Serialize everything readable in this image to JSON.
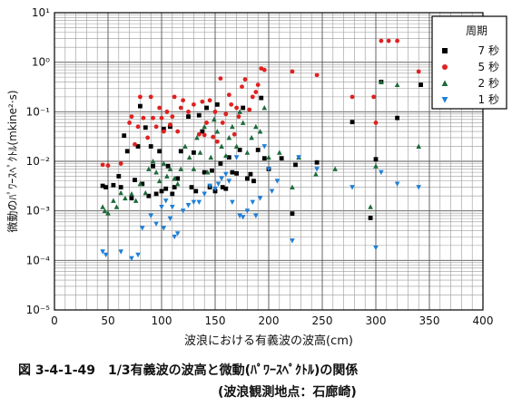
{
  "figure": {
    "caption_line1": "図 3-4-1-49　1/3有義波の波高と微動(ﾊﾟﾜｰｽﾍﾟｸﾄﾙ)の関係",
    "caption_line2": "(波浪観測地点：石廊崎)"
  },
  "chart_data": {
    "type": "scatter",
    "title": "",
    "xlabel": "波浪における有義波の波高(cm)",
    "ylabel": "微動のﾊﾟﾜｰｽﾍﾟｸﾄﾙ(mkine²·s)",
    "xlim": [
      0,
      400
    ],
    "ylim": [
      1e-05,
      10
    ],
    "y_scale": "log",
    "x_ticks": [
      0,
      50,
      100,
      150,
      200,
      250,
      300,
      350,
      400
    ],
    "y_tick_labels": [
      "10⁻⁵",
      "10⁻⁴",
      "10⁻³",
      "10⁻²",
      "10⁻¹",
      "10⁰",
      "10¹"
    ],
    "grid": true,
    "legend": {
      "title": "周期",
      "placement": "top-right"
    },
    "series": [
      {
        "name": "7 秒",
        "marker": "square",
        "color": "#000000",
        "points": [
          [
            45,
            0.0032
          ],
          [
            48,
            0.003
          ],
          [
            55,
            0.0033
          ],
          [
            60,
            0.005
          ],
          [
            62,
            0.003
          ],
          [
            65,
            0.033
          ],
          [
            68,
            0.016
          ],
          [
            72,
            0.0018
          ],
          [
            75,
            0.0042
          ],
          [
            78,
            0.02
          ],
          [
            80,
            0.13
          ],
          [
            82,
            0.0035
          ],
          [
            85,
            0.048
          ],
          [
            88,
            0.002
          ],
          [
            90,
            0.02
          ],
          [
            92,
            0.008
          ],
          [
            95,
            0.0022
          ],
          [
            98,
            0.016
          ],
          [
            100,
            0.0025
          ],
          [
            102,
            0.045
          ],
          [
            104,
            0.0028
          ],
          [
            106,
            0.008
          ],
          [
            108,
            0.05
          ],
          [
            110,
            0.0022
          ],
          [
            112,
            0.003
          ],
          [
            115,
            0.0045
          ],
          [
            118,
            0.016
          ],
          [
            125,
            0.08
          ],
          [
            128,
            0.003
          ],
          [
            130,
            0.015
          ],
          [
            132,
            0.0025
          ],
          [
            135,
            0.085
          ],
          [
            138,
            0.04
          ],
          [
            140,
            0.006
          ],
          [
            142,
            0.12
          ],
          [
            145,
            0.003
          ],
          [
            147,
            0.0065
          ],
          [
            150,
            0.0025
          ],
          [
            152,
            0.14
          ],
          [
            155,
            0.009
          ],
          [
            157,
            0.003
          ],
          [
            160,
            0.0028
          ],
          [
            163,
            0.012
          ],
          [
            166,
            0.006
          ],
          [
            170,
            0.0057
          ],
          [
            173,
            0.017
          ],
          [
            176,
            0.12
          ],
          [
            180,
            0.0045
          ],
          [
            183,
            0.0055
          ],
          [
            186,
            0.004
          ],
          [
            190,
            0.017
          ],
          [
            193,
            0.19
          ],
          [
            196,
            0.0115
          ],
          [
            200,
            0.007
          ],
          [
            212,
            0.0115
          ],
          [
            222,
            0.00088
          ],
          [
            225,
            0.0085
          ],
          [
            245,
            0.0095
          ],
          [
            278,
            0.062
          ],
          [
            295,
            0.00072
          ],
          [
            300,
            0.011
          ],
          [
            305,
            0.4
          ],
          [
            320,
            0.075
          ],
          [
            342,
            0.35
          ]
        ]
      },
      {
        "name": "5 秒",
        "marker": "circle",
        "color": "#e0211f",
        "points": [
          [
            45,
            0.0085
          ],
          [
            50,
            0.0082
          ],
          [
            62,
            0.009
          ],
          [
            70,
            0.06
          ],
          [
            72,
            0.08
          ],
          [
            75,
            0.022
          ],
          [
            78,
            0.05
          ],
          [
            80,
            0.2
          ],
          [
            83,
            0.075
          ],
          [
            87,
            0.03
          ],
          [
            90,
            0.2
          ],
          [
            92,
            0.075
          ],
          [
            95,
            0.05
          ],
          [
            98,
            0.12
          ],
          [
            100,
            0.075
          ],
          [
            102,
            0.04
          ],
          [
            105,
            0.1
          ],
          [
            108,
            0.055
          ],
          [
            110,
            0.08
          ],
          [
            112,
            0.2
          ],
          [
            115,
            0.04
          ],
          [
            118,
            0.12
          ],
          [
            120,
            0.17
          ],
          [
            125,
            0.1
          ],
          [
            130,
            0.14
          ],
          [
            135,
            0.035
          ],
          [
            138,
            0.16
          ],
          [
            140,
            0.034
          ],
          [
            142,
            0.06
          ],
          [
            145,
            0.17
          ],
          [
            148,
            0.031
          ],
          [
            150,
            0.1
          ],
          [
            152,
            0.025
          ],
          [
            155,
            0.47
          ],
          [
            157,
            0.06
          ],
          [
            160,
            0.09
          ],
          [
            163,
            0.22
          ],
          [
            165,
            0.14
          ],
          [
            168,
            0.035
          ],
          [
            170,
            0.12
          ],
          [
            172,
            0.08
          ],
          [
            175,
            0.32
          ],
          [
            178,
            0.45
          ],
          [
            182,
            0.11
          ],
          [
            185,
            0.2
          ],
          [
            188,
            0.25
          ],
          [
            190,
            0.35
          ],
          [
            193,
            0.75
          ],
          [
            196,
            0.7
          ],
          [
            222,
            0.65
          ],
          [
            245,
            0.55
          ],
          [
            278,
            0.2
          ],
          [
            298,
            0.2
          ],
          [
            300,
            0.06
          ],
          [
            305,
            2.7
          ],
          [
            312,
            2.7
          ],
          [
            320,
            2.7
          ],
          [
            340,
            0.65
          ]
        ]
      },
      {
        "name": "2 秒",
        "marker": "triangle-up",
        "color": "#1e6a3a",
        "points": [
          [
            45,
            0.0012
          ],
          [
            47,
            0.001
          ],
          [
            50,
            0.0009
          ],
          [
            55,
            0.0016
          ],
          [
            58,
            0.0012
          ],
          [
            62,
            0.0023
          ],
          [
            66,
            0.0018
          ],
          [
            72,
            0.0022
          ],
          [
            76,
            0.0016
          ],
          [
            80,
            0.0035
          ],
          [
            85,
            0.0023
          ],
          [
            88,
            0.007
          ],
          [
            92,
            0.01
          ],
          [
            95,
            0.006
          ],
          [
            98,
            0.004
          ],
          [
            102,
            0.009
          ],
          [
            105,
            0.005
          ],
          [
            108,
            0.007
          ],
          [
            112,
            0.0045
          ],
          [
            115,
            0.0035
          ],
          [
            118,
            0.007
          ],
          [
            122,
            0.02
          ],
          [
            126,
            0.012
          ],
          [
            130,
            0.007
          ],
          [
            133,
            0.03
          ],
          [
            136,
            0.015
          ],
          [
            140,
            0.05
          ],
          [
            143,
            0.006
          ],
          [
            146,
            0.012
          ],
          [
            149,
            0.07
          ],
          [
            152,
            0.04
          ],
          [
            156,
            0.02
          ],
          [
            160,
            0.013
          ],
          [
            163,
            0.03
          ],
          [
            166,
            0.05
          ],
          [
            170,
            0.02
          ],
          [
            173,
            0.1
          ],
          [
            176,
            0.06
          ],
          [
            180,
            0.015
          ],
          [
            184,
            0.03
          ],
          [
            188,
            0.05
          ],
          [
            192,
            0.04
          ],
          [
            196,
            0.12
          ],
          [
            200,
            0.012
          ],
          [
            210,
            0.015
          ],
          [
            222,
            0.003
          ],
          [
            228,
            0.012
          ],
          [
            244,
            0.0055
          ],
          [
            262,
            0.007
          ],
          [
            295,
            0.0012
          ],
          [
            300,
            0.008
          ],
          [
            305,
            0.4
          ],
          [
            320,
            0.35
          ],
          [
            340,
            0.02
          ]
        ]
      },
      {
        "name": "1 秒",
        "marker": "triangle-down",
        "color": "#1f7fd6",
        "points": [
          [
            45,
            0.00015
          ],
          [
            48,
            0.00013
          ],
          [
            62,
            0.00015
          ],
          [
            72,
            0.00011
          ],
          [
            78,
            0.00013
          ],
          [
            82,
            0.00045
          ],
          [
            90,
            0.0008
          ],
          [
            95,
            0.00055
          ],
          [
            100,
            0.0012
          ],
          [
            102,
            0.00045
          ],
          [
            104,
            0.0016
          ],
          [
            108,
            0.0007
          ],
          [
            110,
            0.0012
          ],
          [
            112,
            0.0003
          ],
          [
            115,
            0.00035
          ],
          [
            120,
            0.001
          ],
          [
            125,
            0.0013
          ],
          [
            130,
            0.0015
          ],
          [
            135,
            0.0015
          ],
          [
            140,
            0.0022
          ],
          [
            145,
            0.0032
          ],
          [
            150,
            0.0028
          ],
          [
            153,
            0.0035
          ],
          [
            156,
            0.0045
          ],
          [
            160,
            0.0055
          ],
          [
            163,
            0.004
          ],
          [
            166,
            0.0015
          ],
          [
            170,
            0.012
          ],
          [
            173,
            0.0008
          ],
          [
            176,
            0.00075
          ],
          [
            180,
            0.001
          ],
          [
            185,
            0.0015
          ],
          [
            188,
            0.0008
          ],
          [
            192,
            0.0018
          ],
          [
            196,
            0.02
          ],
          [
            200,
            0.007
          ],
          [
            203,
            0.0025
          ],
          [
            208,
            0.004
          ],
          [
            222,
            0.00025
          ],
          [
            228,
            0.012
          ],
          [
            245,
            0.007
          ],
          [
            278,
            0.003
          ],
          [
            300,
            0.00018
          ],
          [
            305,
            0.006
          ],
          [
            320,
            0.0035
          ],
          [
            340,
            0.003
          ]
        ]
      }
    ]
  }
}
